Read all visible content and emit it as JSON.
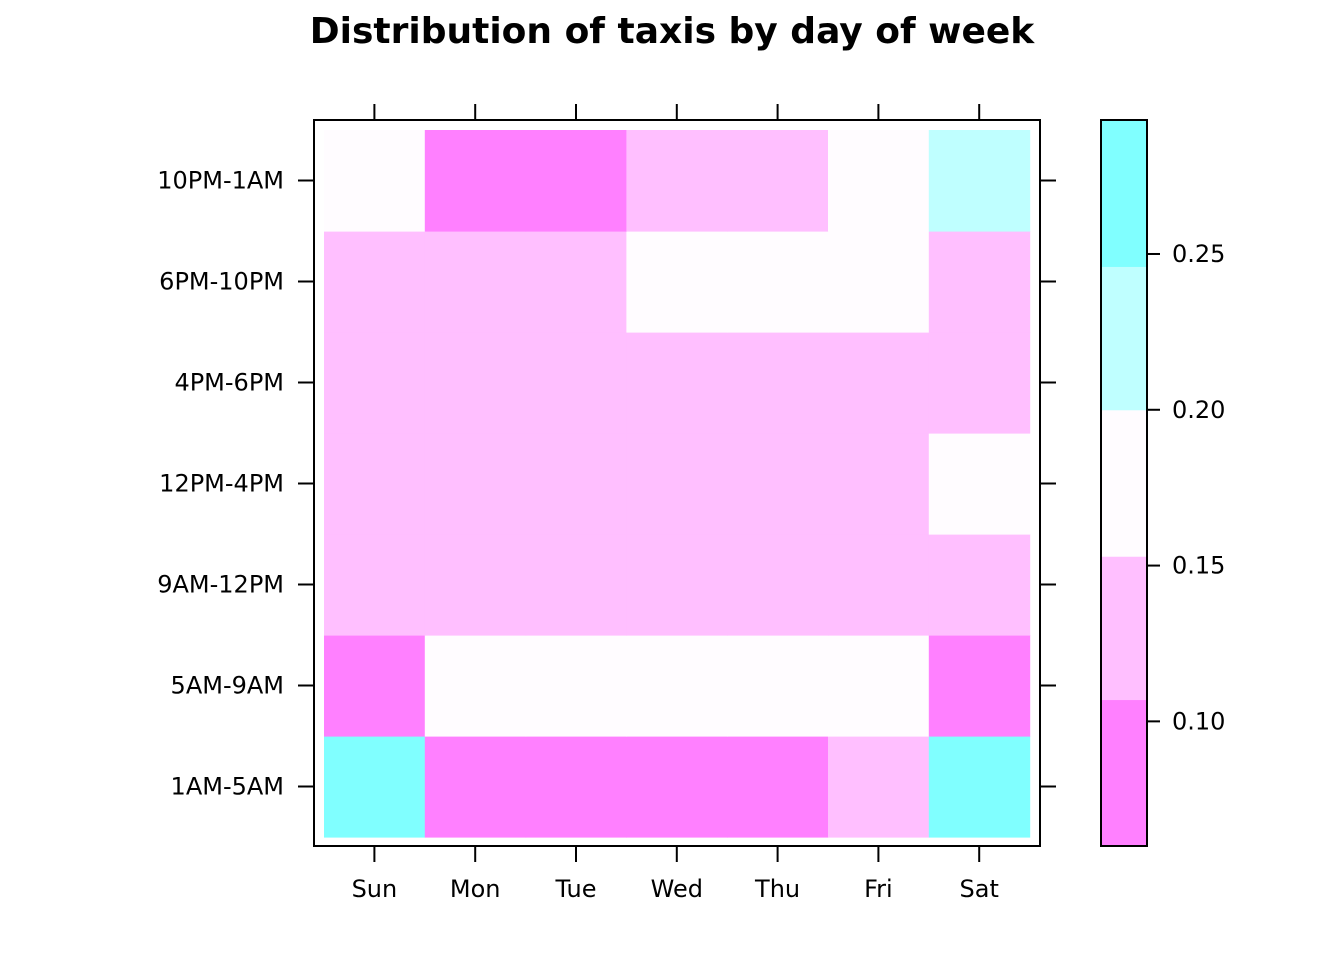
{
  "chart_data": {
    "type": "heatmap",
    "title": "Distribution of taxis by day of week",
    "x_categories": [
      "Sun",
      "Mon",
      "Tue",
      "Wed",
      "Thu",
      "Fri",
      "Sat"
    ],
    "y_categories": [
      "1AM-5AM",
      "5AM-9AM",
      "9AM-12PM",
      "12PM-4PM",
      "4PM-6PM",
      "6PM-10PM",
      "10PM-1AM"
    ],
    "values": [
      [
        0.27,
        0.08,
        0.08,
        0.08,
        0.08,
        0.12,
        0.27
      ],
      [
        0.08,
        0.17,
        0.17,
        0.17,
        0.17,
        0.17,
        0.08
      ],
      [
        0.12,
        0.12,
        0.12,
        0.12,
        0.12,
        0.12,
        0.12
      ],
      [
        0.12,
        0.12,
        0.12,
        0.12,
        0.12,
        0.12,
        0.17
      ],
      [
        0.12,
        0.12,
        0.12,
        0.12,
        0.12,
        0.12,
        0.12
      ],
      [
        0.12,
        0.12,
        0.12,
        0.17,
        0.17,
        0.17,
        0.12
      ],
      [
        0.17,
        0.08,
        0.08,
        0.12,
        0.12,
        0.17,
        0.22
      ]
    ],
    "color_breaks": [
      0.06,
      0.107,
      0.153,
      0.2,
      0.246,
      0.293
    ],
    "colors": [
      "#FF80FF",
      "#FFBFFF",
      "#FFFCFF",
      "#BFFFFF",
      "#80FFFF"
    ],
    "colorbar_ticks": [
      "0.10",
      "0.15",
      "0.20",
      "0.25"
    ],
    "colorbar_tick_values": [
      0.1,
      0.15,
      0.2,
      0.25
    ],
    "legend": "right"
  }
}
